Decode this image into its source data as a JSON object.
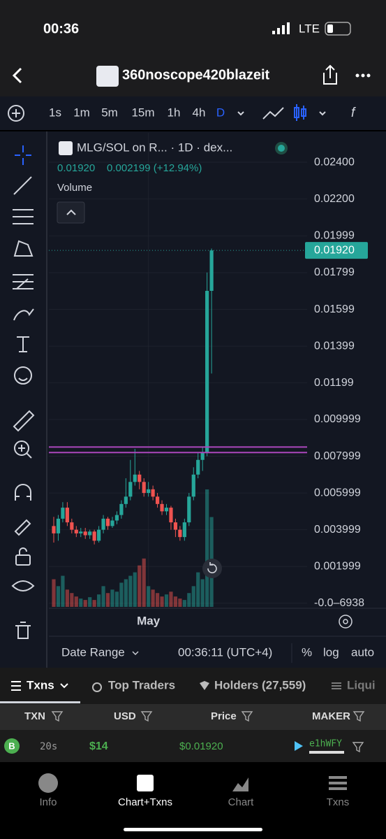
{
  "status_bar": {
    "time": "00:36",
    "network": "LTE"
  },
  "header": {
    "title": "360noscope420blazeit"
  },
  "toolbar": {
    "intervals": [
      "1s",
      "1m",
      "5m",
      "15m",
      "1h",
      "4h",
      "D"
    ],
    "active_index": 6
  },
  "chart_data": {
    "type": "candlestick",
    "legend": {
      "pair": "MLG/SOL on R... · 1D · dex...",
      "change": "0.002199 (+12.94%)",
      "volume_label": "Volume"
    },
    "categories": [
      null,
      null,
      null,
      null,
      null,
      null,
      null,
      null,
      null,
      null,
      null,
      null,
      null,
      null,
      null,
      null,
      null,
      null,
      null,
      null,
      null,
      "May",
      null,
      null,
      null,
      null,
      null,
      null,
      null,
      null,
      null,
      null,
      null,
      null,
      null,
      null
    ],
    "candles": {
      "open": [
        0.0042,
        0.0038,
        0.0046,
        0.0052,
        0.0044,
        0.004,
        0.0038,
        0.0039,
        0.0037,
        0.0039,
        0.0034,
        0.004,
        0.0046,
        0.0042,
        0.0045,
        0.0048,
        0.0054,
        0.0058,
        0.0066,
        0.007,
        0.0066,
        0.006,
        0.0062,
        0.0058,
        0.0054,
        0.005,
        0.0052,
        0.0044,
        0.004,
        0.0036,
        0.0044,
        0.0058,
        0.007,
        0.0078,
        0.0082,
        0.017
      ],
      "high": [
        0.0047,
        0.0048,
        0.0055,
        0.0055,
        0.0046,
        0.0042,
        0.0041,
        0.0041,
        0.004,
        0.004,
        0.0042,
        0.0048,
        0.0047,
        0.0047,
        0.005,
        0.0056,
        0.0068,
        0.0078,
        0.0084,
        0.0072,
        0.0068,
        0.0066,
        0.0064,
        0.006,
        0.0056,
        0.0054,
        0.0053,
        0.0046,
        0.0042,
        0.0046,
        0.006,
        0.0074,
        0.0082,
        0.0085,
        0.018,
        0.0193
      ],
      "low": [
        0.0033,
        0.0034,
        0.0044,
        0.0042,
        0.0038,
        0.0036,
        0.0036,
        0.0035,
        0.0035,
        0.0032,
        0.0033,
        0.0038,
        0.004,
        0.0041,
        0.0043,
        0.0046,
        0.0052,
        0.0056,
        0.0064,
        0.0062,
        0.0058,
        0.0058,
        0.0056,
        0.0052,
        0.0048,
        0.0048,
        0.004,
        0.0036,
        0.0034,
        0.0034,
        0.0042,
        0.0056,
        0.0068,
        0.0072,
        0.008,
        0.0125
      ],
      "close": [
        0.0038,
        0.0046,
        0.0052,
        0.0044,
        0.004,
        0.0038,
        0.0039,
        0.0037,
        0.0039,
        0.0034,
        0.004,
        0.0046,
        0.0042,
        0.0045,
        0.0048,
        0.0054,
        0.0058,
        0.0066,
        0.007,
        0.0066,
        0.006,
        0.0062,
        0.0058,
        0.0054,
        0.005,
        0.0052,
        0.0044,
        0.004,
        0.0036,
        0.0044,
        0.0058,
        0.007,
        0.0078,
        0.0082,
        0.017,
        0.0192
      ]
    },
    "volume": [
      40,
      30,
      45,
      25,
      20,
      15,
      12,
      10,
      14,
      10,
      18,
      30,
      20,
      25,
      22,
      35,
      40,
      45,
      50,
      60,
      70,
      30,
      25,
      20,
      15,
      18,
      22,
      15,
      12,
      10,
      20,
      30,
      50,
      40,
      170,
      130
    ],
    "up_color": "#26a69a",
    "down_color": "#ef5350",
    "last_price": {
      "value": 0.0192,
      "label": "0.01920"
    },
    "levels": [
      0.0085,
      0.0082
    ],
    "level_color": "#ab47bc",
    "ylim": [
      -0.0002,
      0.0256
    ],
    "yticks": [
      {
        "value": 0.024,
        "label": "0.02400"
      },
      {
        "value": 0.022,
        "label": "0.02200"
      },
      {
        "value": 0.01999,
        "label": "0.01999"
      },
      {
        "value": 0.01799,
        "label": "0.01799"
      },
      {
        "value": 0.01599,
        "label": "0.01599"
      },
      {
        "value": 0.01399,
        "label": "0.01399"
      },
      {
        "value": 0.01199,
        "label": "0.01199"
      },
      {
        "value": 0.009999,
        "label": "0.009999"
      },
      {
        "value": 0.007999,
        "label": "0.007999"
      },
      {
        "value": 0.005999,
        "label": "0.005999"
      },
      {
        "value": 0.003999,
        "label": "0.003999"
      },
      {
        "value": 0.001999,
        "label": "0.001999"
      },
      {
        "value": 0,
        "label": "-0.0‒6938"
      }
    ],
    "grid": true
  },
  "chart_footer": {
    "date_range": "Date Range",
    "clock": "00:36:11 (UTC+4)",
    "percent": "%",
    "log": "log",
    "auto": "auto"
  },
  "tabs": [
    "Txns",
    "Top Traders",
    "Holders (27,559)",
    "Liqui"
  ],
  "table": {
    "headers": [
      "TXN",
      "USD",
      "Price",
      "MAKER"
    ],
    "rows": [
      [
        "B",
        "20s",
        "$14",
        "$0.01920",
        "e1hWFY"
      ]
    ]
  },
  "nav": [
    "Info",
    "Chart+Txns",
    "Chart",
    "Txns"
  ]
}
